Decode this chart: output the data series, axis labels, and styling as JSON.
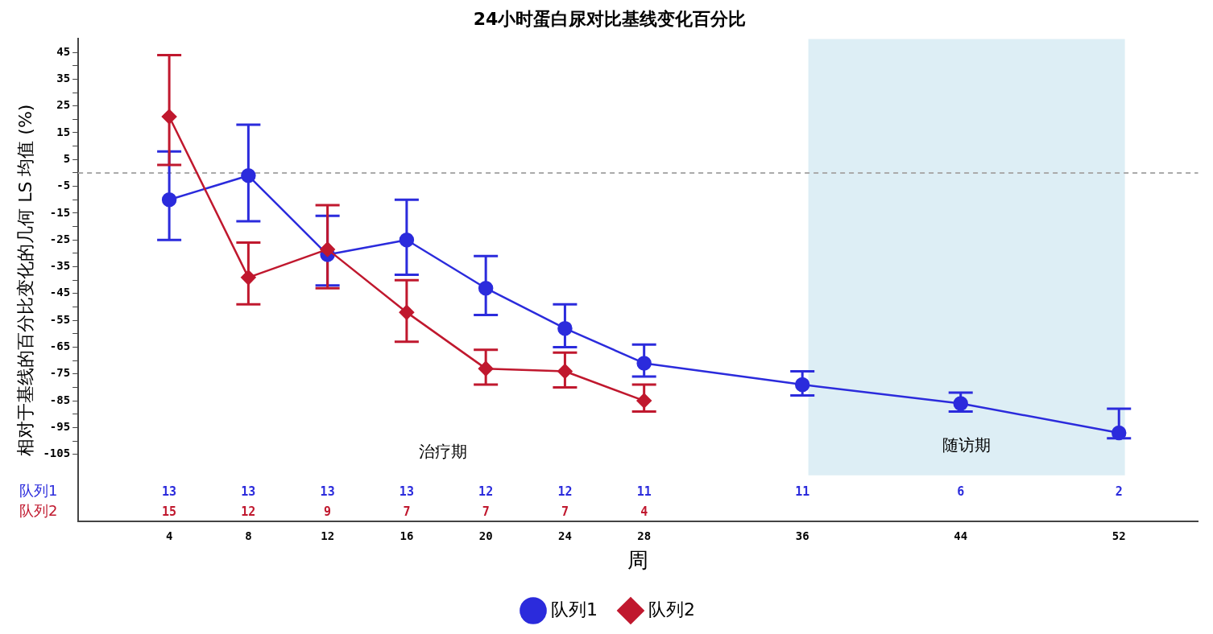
{
  "chart_data": {
    "type": "line",
    "title": "24小时蛋白尿对比基线变化百分比",
    "xlabel": "周",
    "ylabel": "相对于基线的百分比变化的几何 LS 均值 (%)",
    "x": [
      4,
      8,
      12,
      16,
      20,
      24,
      28,
      36,
      44,
      52
    ],
    "xlim": [
      -0.6,
      56
    ],
    "xticks": [
      4,
      8,
      12,
      16,
      20,
      24,
      28,
      36,
      44,
      52
    ],
    "ylim": [
      -130,
      50
    ],
    "yticks": [
      45,
      {
        "value": 40,
        "label": null
      },
      35,
      {
        "value": 30,
        "label": null
      },
      25,
      {
        "value": 20,
        "label": null
      },
      15,
      {
        "value": 10,
        "label": null
      },
      5,
      {
        "value": 0,
        "label": null
      },
      -5,
      {
        "value": -10,
        "label": null
      },
      -15,
      {
        "value": -20,
        "label": null
      },
      -25,
      {
        "value": -30,
        "label": null
      },
      -35,
      {
        "value": -40,
        "label": null
      },
      -45,
      {
        "value": -50,
        "label": null
      },
      -55,
      {
        "value": -60,
        "label": null
      },
      -65,
      {
        "value": -70,
        "label": null
      },
      -75,
      {
        "value": -80,
        "label": null
      },
      -85,
      {
        "value": -90,
        "label": null
      },
      -95,
      {
        "value": -100,
        "label": null
      },
      -105
    ],
    "series": [
      {
        "name": "队列1",
        "color": "#2b2bdc",
        "marker": "circle",
        "values": [
          -10,
          -1,
          -30.5,
          -25,
          -43,
          -58,
          -71,
          -79,
          -86,
          -97
        ],
        "errors": [
          [
            -25,
            8
          ],
          [
            -18,
            18
          ],
          [
            -42,
            -16
          ],
          [
            -38,
            -10
          ],
          [
            -53,
            -31
          ],
          [
            -65,
            -49
          ],
          [
            -76,
            -64
          ],
          [
            -83,
            -74
          ],
          [
            -89,
            -82
          ],
          [
            -99,
            -88
          ]
        ]
      },
      {
        "name": "队列2",
        "color": "#c0182e",
        "marker": "diamond",
        "values": [
          21,
          -39,
          -28.5,
          -52,
          -73,
          -74,
          -85,
          null,
          null,
          null
        ],
        "errors": [
          [
            3,
            44
          ],
          [
            -49,
            -26
          ],
          [
            -43,
            -12
          ],
          [
            -63,
            -40
          ],
          [
            -79,
            -66
          ],
          [
            -80,
            -67
          ],
          [
            -89,
            -79
          ],
          null,
          null,
          null
        ]
      }
    ],
    "ref_lines": [
      {
        "axis": "y",
        "value": 0,
        "color": "#aaaaaa",
        "line_style": "dashed"
      }
    ],
    "bands": [
      {
        "axis": "x",
        "from": 36.3,
        "to": 52.3,
        "label": "随访期",
        "color": "#ddeef5"
      }
    ],
    "annotations": [
      "治疗期",
      "队列1",
      "13",
      "13",
      "13",
      "13",
      "12",
      "12",
      "11",
      "11",
      "6",
      "2",
      "队列2",
      "15",
      "12",
      "9",
      "7",
      "7",
      "7",
      "4"
    ],
    "grid": false,
    "legend": "bottom"
  }
}
